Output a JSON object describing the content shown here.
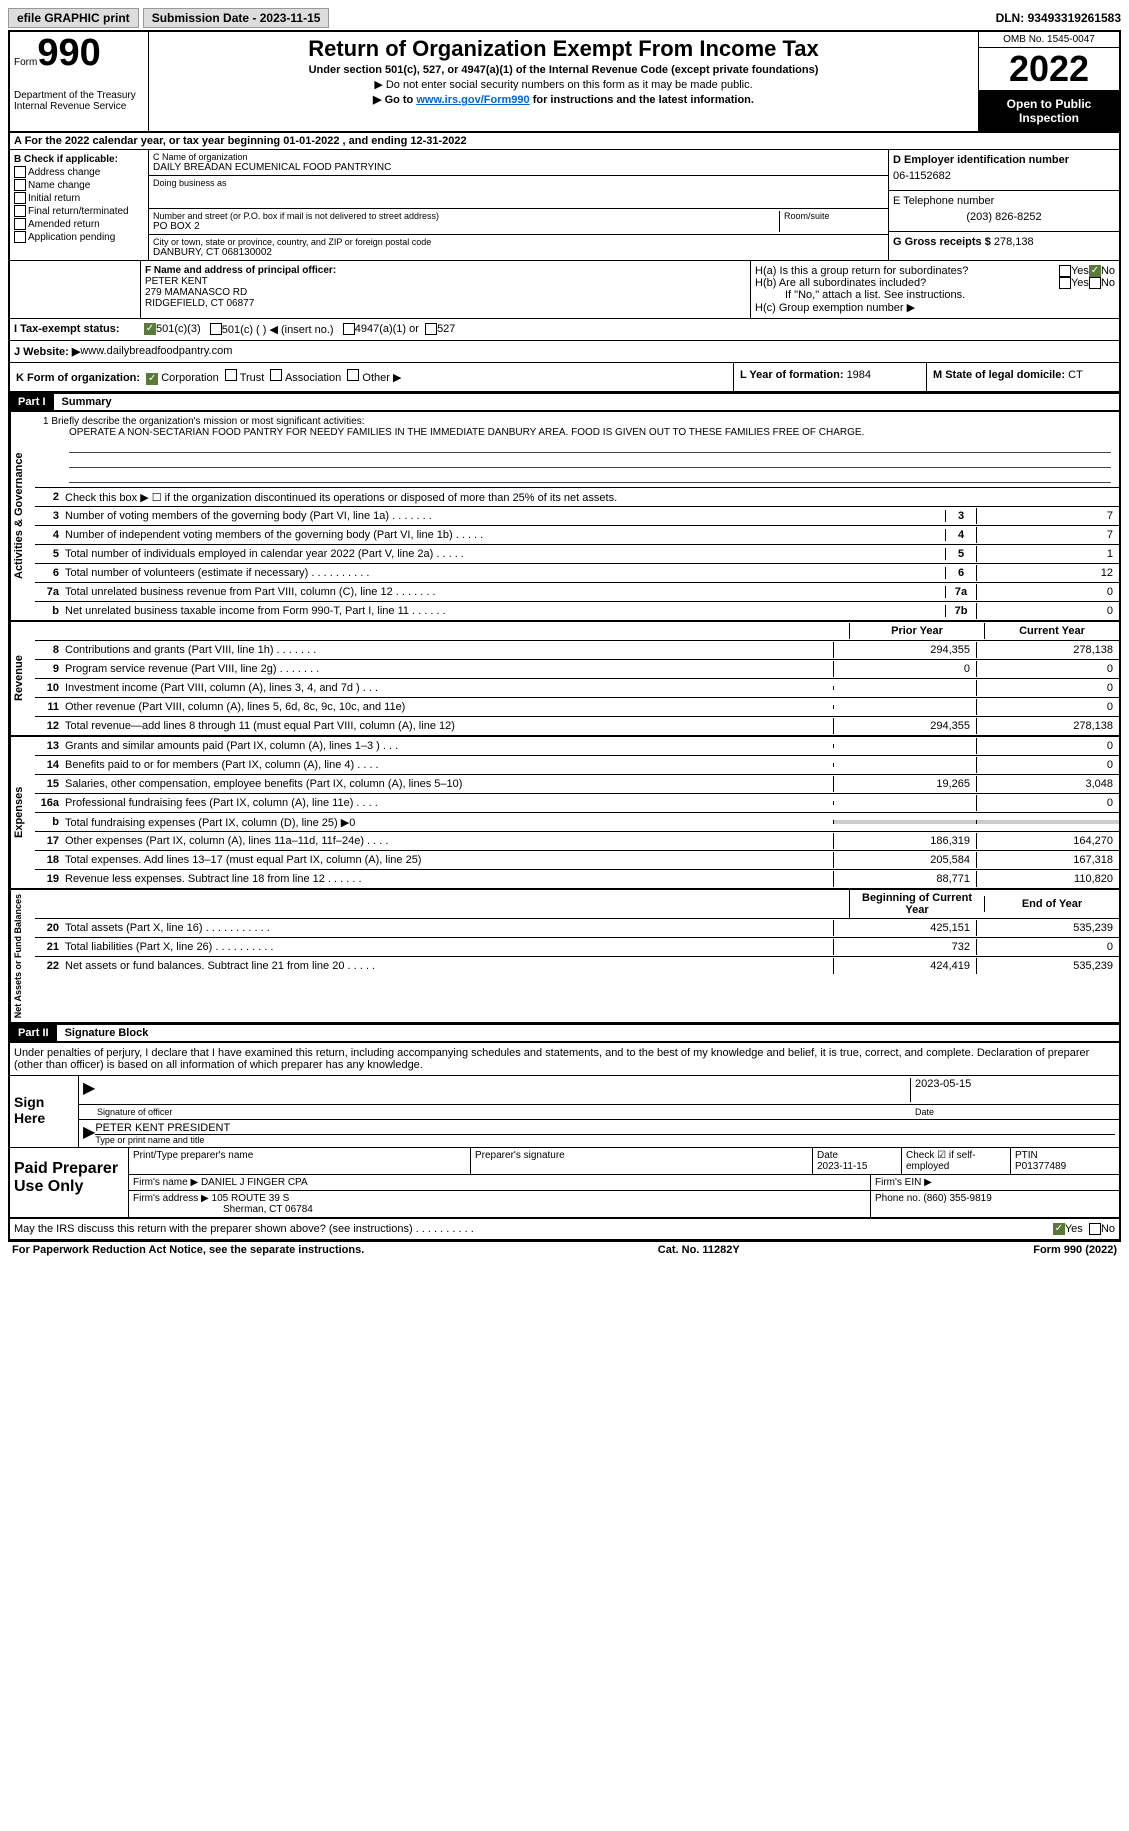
{
  "topbar": {
    "efile": "efile GRAPHIC print",
    "submission_label": "Submission Date - ",
    "submission_date": "2023-11-15",
    "dln_label": "DLN: ",
    "dln": "93493319261583"
  },
  "header": {
    "form_word": "Form",
    "form_num": "990",
    "dept": "Department of the Treasury Internal Revenue Service",
    "title": "Return of Organization Exempt From Income Tax",
    "subtitle": "Under section 501(c), 527, or 4947(a)(1) of the Internal Revenue Code (except private foundations)",
    "instr1": "▶ Do not enter social security numbers on this form as it may be made public.",
    "instr2_pre": "▶ Go to ",
    "instr2_link": "www.irs.gov/Form990",
    "instr2_post": " for instructions and the latest information.",
    "omb": "OMB No. 1545-0047",
    "year": "2022",
    "open_pub": "Open to Public Inspection"
  },
  "row_a": "A For the 2022 calendar year, or tax year beginning 01-01-2022    , and ending 12-31-2022",
  "b": {
    "label": "B Check if applicable:",
    "opts": [
      "Address change",
      "Name change",
      "Initial return",
      "Final return/terminated",
      "Amended return",
      "Application pending"
    ]
  },
  "c": {
    "name_label": "C Name of organization",
    "name": "DAILY BREADAN ECUMENICAL FOOD PANTRYINC",
    "dba_label": "Doing business as",
    "dba": "",
    "addr_label": "Number and street (or P.O. box if mail is not delivered to street address)",
    "room_label": "Room/suite",
    "addr": "PO BOX 2",
    "city_label": "City or town, state or province, country, and ZIP or foreign postal code",
    "city": "DANBURY, CT  068130002"
  },
  "d": {
    "ein_label": "D Employer identification number",
    "ein": "06-1152682",
    "phone_label": "E Telephone number",
    "phone": "(203) 826-8252",
    "gross_label": "G Gross receipts $ ",
    "gross": "278,138"
  },
  "f": {
    "label": "F  Name and address of principal officer:",
    "name": "PETER KENT",
    "addr1": "279 MAMANASCO RD",
    "addr2": "RIDGEFIELD, CT  06877"
  },
  "h": {
    "a_label": "H(a)  Is this a group return for subordinates?",
    "b_label": "H(b)  Are all subordinates included?",
    "b_note": "If \"No,\" attach a list. See instructions.",
    "c_label": "H(c)  Group exemption number ▶",
    "yes": "Yes",
    "no": "No"
  },
  "i": {
    "label": "I    Tax-exempt status:",
    "o1": "501(c)(3)",
    "o2": "501(c) (  ) ◀ (insert no.)",
    "o3": "4947(a)(1) or",
    "o4": "527"
  },
  "j": {
    "label": "J   Website: ▶",
    "val": "  www.dailybreadfoodpantry.com"
  },
  "k": {
    "label": "K Form of organization:",
    "o1": "Corporation",
    "o2": "Trust",
    "o3": "Association",
    "o4": "Other ▶"
  },
  "l": {
    "label": "L Year of formation: ",
    "val": "1984"
  },
  "m": {
    "label": "M State of legal domicile: ",
    "val": "CT"
  },
  "part1": {
    "num": "Part I",
    "title": "Summary"
  },
  "mission": {
    "q": "1   Briefly describe the organization's mission or most significant activities:",
    "text": "OPERATE A NON-SECTARIAN FOOD PANTRY FOR NEEDY FAMILIES IN THE IMMEDIATE DANBURY AREA. FOOD IS GIVEN OUT TO THESE FAMILIES FREE OF CHARGE."
  },
  "gov_lines": [
    {
      "n": "2",
      "d": "Check this box ▶ ☐  if the organization discontinued its operations or disposed of more than 25% of its net assets."
    },
    {
      "n": "3",
      "d": "Number of voting members of the governing body (Part VI, line 1a)   .    .    .    .    .    .    .",
      "c": "3",
      "v": "7"
    },
    {
      "n": "4",
      "d": "Number of independent voting members of the governing body (Part VI, line 1b)   .    .    .    .    .",
      "c": "4",
      "v": "7"
    },
    {
      "n": "5",
      "d": "Total number of individuals employed in calendar year 2022 (Part V, line 2a)   .    .    .    .    .",
      "c": "5",
      "v": "1"
    },
    {
      "n": "6",
      "d": "Total number of volunteers (estimate if necessary)    .    .    .    .    .    .    .    .    .    .",
      "c": "6",
      "v": "12"
    },
    {
      "n": "7a",
      "d": "Total unrelated business revenue from Part VIII, column (C), line 12   .    .    .    .    .    .    .",
      "c": "7a",
      "v": "0"
    },
    {
      "n": "b",
      "d": "Net unrelated business taxable income from Form 990-T, Part I, line 11   .    .    .    .    .    .",
      "c": "7b",
      "v": "0"
    }
  ],
  "rev_hdr": {
    "prior": "Prior Year",
    "curr": "Current Year"
  },
  "rev_lines": [
    {
      "n": "8",
      "d": "Contributions and grants (Part VIII, line 1h)    .    .    .    .    .    .    .",
      "p": "294,355",
      "c": "278,138"
    },
    {
      "n": "9",
      "d": "Program service revenue (Part VIII, line 2g)    .    .    .    .    .    .    .",
      "p": "0",
      "c": "0"
    },
    {
      "n": "10",
      "d": "Investment income (Part VIII, column (A), lines 3, 4, and 7d )    .    .    .",
      "p": "",
      "c": "0"
    },
    {
      "n": "11",
      "d": "Other revenue (Part VIII, column (A), lines 5, 6d, 8c, 9c, 10c, and 11e)",
      "p": "",
      "c": "0"
    },
    {
      "n": "12",
      "d": "Total revenue—add lines 8 through 11 (must equal Part VIII, column (A), line 12)",
      "p": "294,355",
      "c": "278,138"
    }
  ],
  "exp_lines": [
    {
      "n": "13",
      "d": "Grants and similar amounts paid (Part IX, column (A), lines 1–3 )   .    .    .",
      "p": "",
      "c": "0"
    },
    {
      "n": "14",
      "d": "Benefits paid to or for members (Part IX, column (A), line 4)   .    .    .    .",
      "p": "",
      "c": "0"
    },
    {
      "n": "15",
      "d": "Salaries, other compensation, employee benefits (Part IX, column (A), lines 5–10)",
      "p": "19,265",
      "c": "3,048"
    },
    {
      "n": "16a",
      "d": "Professional fundraising fees (Part IX, column (A), line 11e)   .    .    .    .",
      "p": "",
      "c": "0"
    },
    {
      "n": "b",
      "d": "Total fundraising expenses (Part IX, column (D), line 25) ▶0",
      "p": "gray",
      "c": "gray"
    },
    {
      "n": "17",
      "d": "Other expenses (Part IX, column (A), lines 11a–11d, 11f–24e)   .    .    .    .",
      "p": "186,319",
      "c": "164,270"
    },
    {
      "n": "18",
      "d": "Total expenses. Add lines 13–17 (must equal Part IX, column (A), line 25)",
      "p": "205,584",
      "c": "167,318"
    },
    {
      "n": "19",
      "d": "Revenue less expenses. Subtract line 18 from line 12   .    .    .    .    .    .",
      "p": "88,771",
      "c": "110,820"
    }
  ],
  "net_hdr": {
    "beg": "Beginning of Current Year",
    "end": "End of Year"
  },
  "net_lines": [
    {
      "n": "20",
      "d": "Total assets (Part X, line 16)   .    .    .    .    .    .    .    .    .    .    .",
      "p": "425,151",
      "c": "535,239"
    },
    {
      "n": "21",
      "d": "Total liabilities (Part X, line 26)   .    .    .    .    .    .    .    .    .    .",
      "p": "732",
      "c": "0"
    },
    {
      "n": "22",
      "d": "Net assets or fund balances. Subtract line 21 from line 20   .    .    .    .    .",
      "p": "424,419",
      "c": "535,239"
    }
  ],
  "part2": {
    "num": "Part II",
    "title": "Signature Block"
  },
  "sig": {
    "decl": "Under penalties of perjury, I declare that I have examined this return, including accompanying schedules and statements, and to the best of my knowledge and belief, it is true, correct, and complete. Declaration of preparer (other than officer) is based on all information of which preparer has any knowledge.",
    "sign_here": "Sign Here",
    "sig_officer": "Signature of officer",
    "sig_date": "2023-05-15",
    "date_label": "Date",
    "name_title": "PETER KENT  PRESIDENT",
    "type_label": "Type or print name and title"
  },
  "prep": {
    "label": "Paid Preparer Use Only",
    "print_label": "Print/Type preparer's name",
    "print_name": "",
    "sig_label": "Preparer's signature",
    "date_label": "Date",
    "date": "2023-11-15",
    "check_label": "Check ☑  if self-employed",
    "ptin_label": "PTIN",
    "ptin": "P01377489",
    "firm_name_label": "Firm's name      ▶ ",
    "firm_name": "DANIEL J FINGER CPA",
    "firm_ein_label": "Firm's EIN ▶",
    "firm_addr_label": "Firm's address ▶ ",
    "firm_addr1": "105 ROUTE 39 S",
    "firm_addr2": "Sherman, CT  06784",
    "phone_label": "Phone no. ",
    "phone": "(860) 355-9819"
  },
  "footer": {
    "discuss": "May the IRS discuss this return with the preparer shown above? (see instructions)   .    .    .    .    .    .    .    .    .    .",
    "yes": "Yes",
    "no": "No",
    "paperwork": "For Paperwork Reduction Act Notice, see the separate instructions.",
    "cat": "Cat. No. 11282Y",
    "form": "Form 990 (2022)"
  },
  "vlabels": {
    "gov": "Activities & Governance",
    "rev": "Revenue",
    "exp": "Expenses",
    "net": "Net Assets or Fund Balances"
  }
}
